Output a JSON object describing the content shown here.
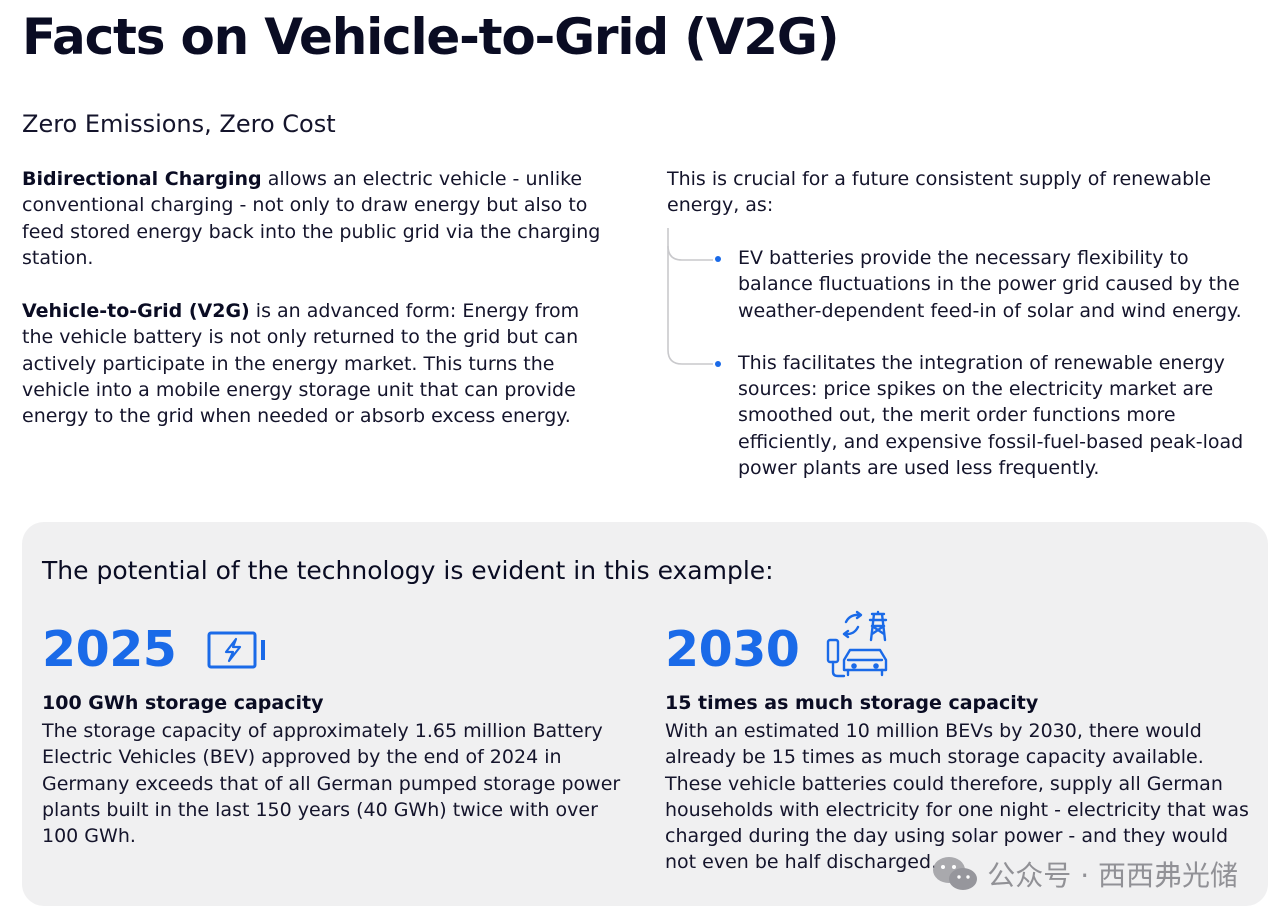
{
  "title": "Facts on Vehicle-to-Grid (V2G)",
  "subtitle": "Zero Emissions, Zero Cost",
  "intro": {
    "p1_bold": "Bidirectional Charging",
    "p1_text": " allows an electric vehicle - unlike conventional charging - not only to draw energy but also to feed stored energy back into the public grid via the charging station.",
    "p2_bold": "Vehicle-to-Grid (V2G)",
    "p2_text": " is an advanced form: Energy from the vehicle battery is not only returned to the grid but can actively participate in the energy market. This turns the vehicle into a mobile energy storage unit that can provide energy to the grid when needed or absorb excess energy."
  },
  "right": {
    "lead": "This is crucial for a future consistent supply of renewable energy, as:",
    "bullets": [
      "EV batteries provide the necessary flexibility to balance fluctuations in the power grid caused by the weather-dependent feed-in of solar and wind energy.",
      "This facilitates the integration of renewable energy sources: price spikes on the electricity market are smoothed out, the merit order functions more efficiently, and expensive fossil-fuel-based peak-load power plants are used less frequently."
    ]
  },
  "example": {
    "heading": "The potential of the technology is evident in this example:",
    "items": [
      {
        "year": "2025",
        "icon": "battery-charging-icon",
        "headline": "100 GWh storage capacity",
        "body": "The storage capacity of approximately 1.65 million Battery Electric Vehicles (BEV) approved by the end of 2024 in Germany exceeds that of all German pumped storage power plants built in the last 150 years (40 GWh) twice with over 100 GWh."
      },
      {
        "year": "2030",
        "icon": "ev-grid-exchange-icon",
        "headline": "15 times as much storage capacity",
        "body": "With an estimated 10 million BEVs by 2030, there would already be 15 times as much storage capacity available. These vehicle batteries could therefore, supply all German households with electricity for one night - electricity that was charged during the day using solar power - and they would not even be half discharged."
      }
    ]
  },
  "watermark": {
    "text": "公众号 · 西西弗光储",
    "icon": "wechat-icon"
  },
  "colors": {
    "accent": "#1a6ae8",
    "title": "#0a0c23",
    "card_bg": "#f0f0f1",
    "watermark": "#8a8a8f"
  }
}
